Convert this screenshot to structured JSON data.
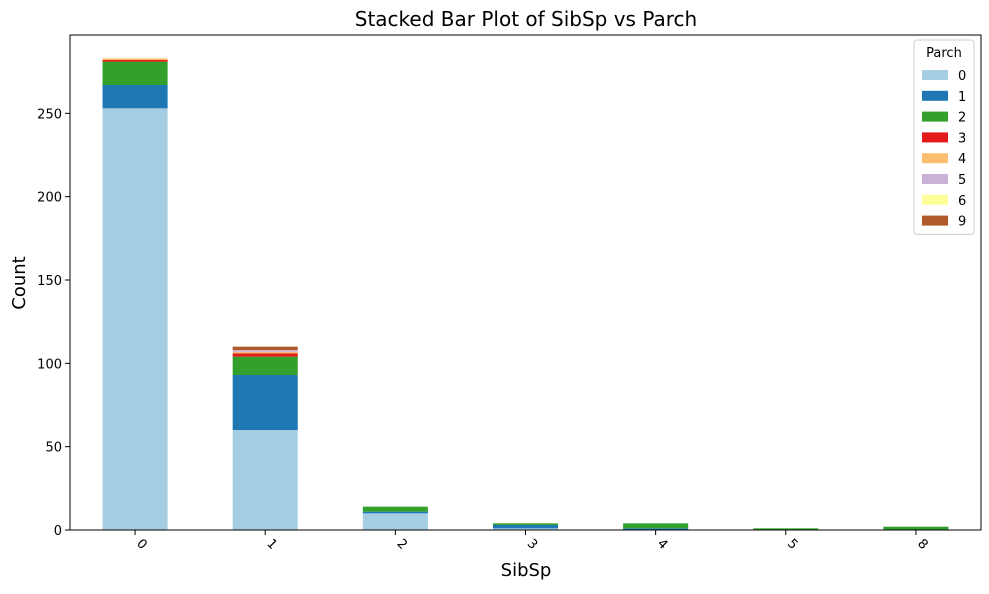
{
  "chart_data": {
    "type": "bar",
    "stacked": true,
    "title": "Stacked Bar Plot of SibSp vs Parch",
    "xlabel": "SibSp",
    "ylabel": "Count",
    "categories": [
      "0",
      "1",
      "2",
      "3",
      "4",
      "5",
      "8"
    ],
    "ylim": [
      0,
      297
    ],
    "yticks": [
      0,
      50,
      100,
      150,
      200,
      250
    ],
    "grid": false,
    "legend": {
      "title": "Parch",
      "placement": "top-right"
    },
    "series": [
      {
        "name": "0",
        "color": "#a6cee3",
        "values": [
          253,
          60,
          10,
          1,
          0,
          0,
          0
        ]
      },
      {
        "name": "1",
        "color": "#1f78b4",
        "values": [
          14,
          33,
          1,
          2,
          1,
          0,
          0
        ]
      },
      {
        "name": "2",
        "color": "#33a02c",
        "values": [
          14,
          11,
          3,
          1,
          3,
          1,
          2
        ]
      },
      {
        "name": "3",
        "color": "#e31a1c",
        "values": [
          1,
          2,
          0,
          0,
          0,
          0,
          0
        ]
      },
      {
        "name": "4",
        "color": "#fdbf6f",
        "values": [
          1,
          1,
          0,
          0,
          0,
          0,
          0
        ]
      },
      {
        "name": "5",
        "color": "#cab2d6",
        "values": [
          0,
          1,
          0,
          0,
          0,
          0,
          0
        ]
      },
      {
        "name": "6",
        "color": "#ffff99",
        "values": [
          0,
          0,
          0,
          0,
          0,
          0,
          0
        ]
      },
      {
        "name": "9",
        "color": "#b15928",
        "values": [
          0,
          2,
          0,
          0,
          0,
          0,
          0
        ]
      }
    ]
  }
}
